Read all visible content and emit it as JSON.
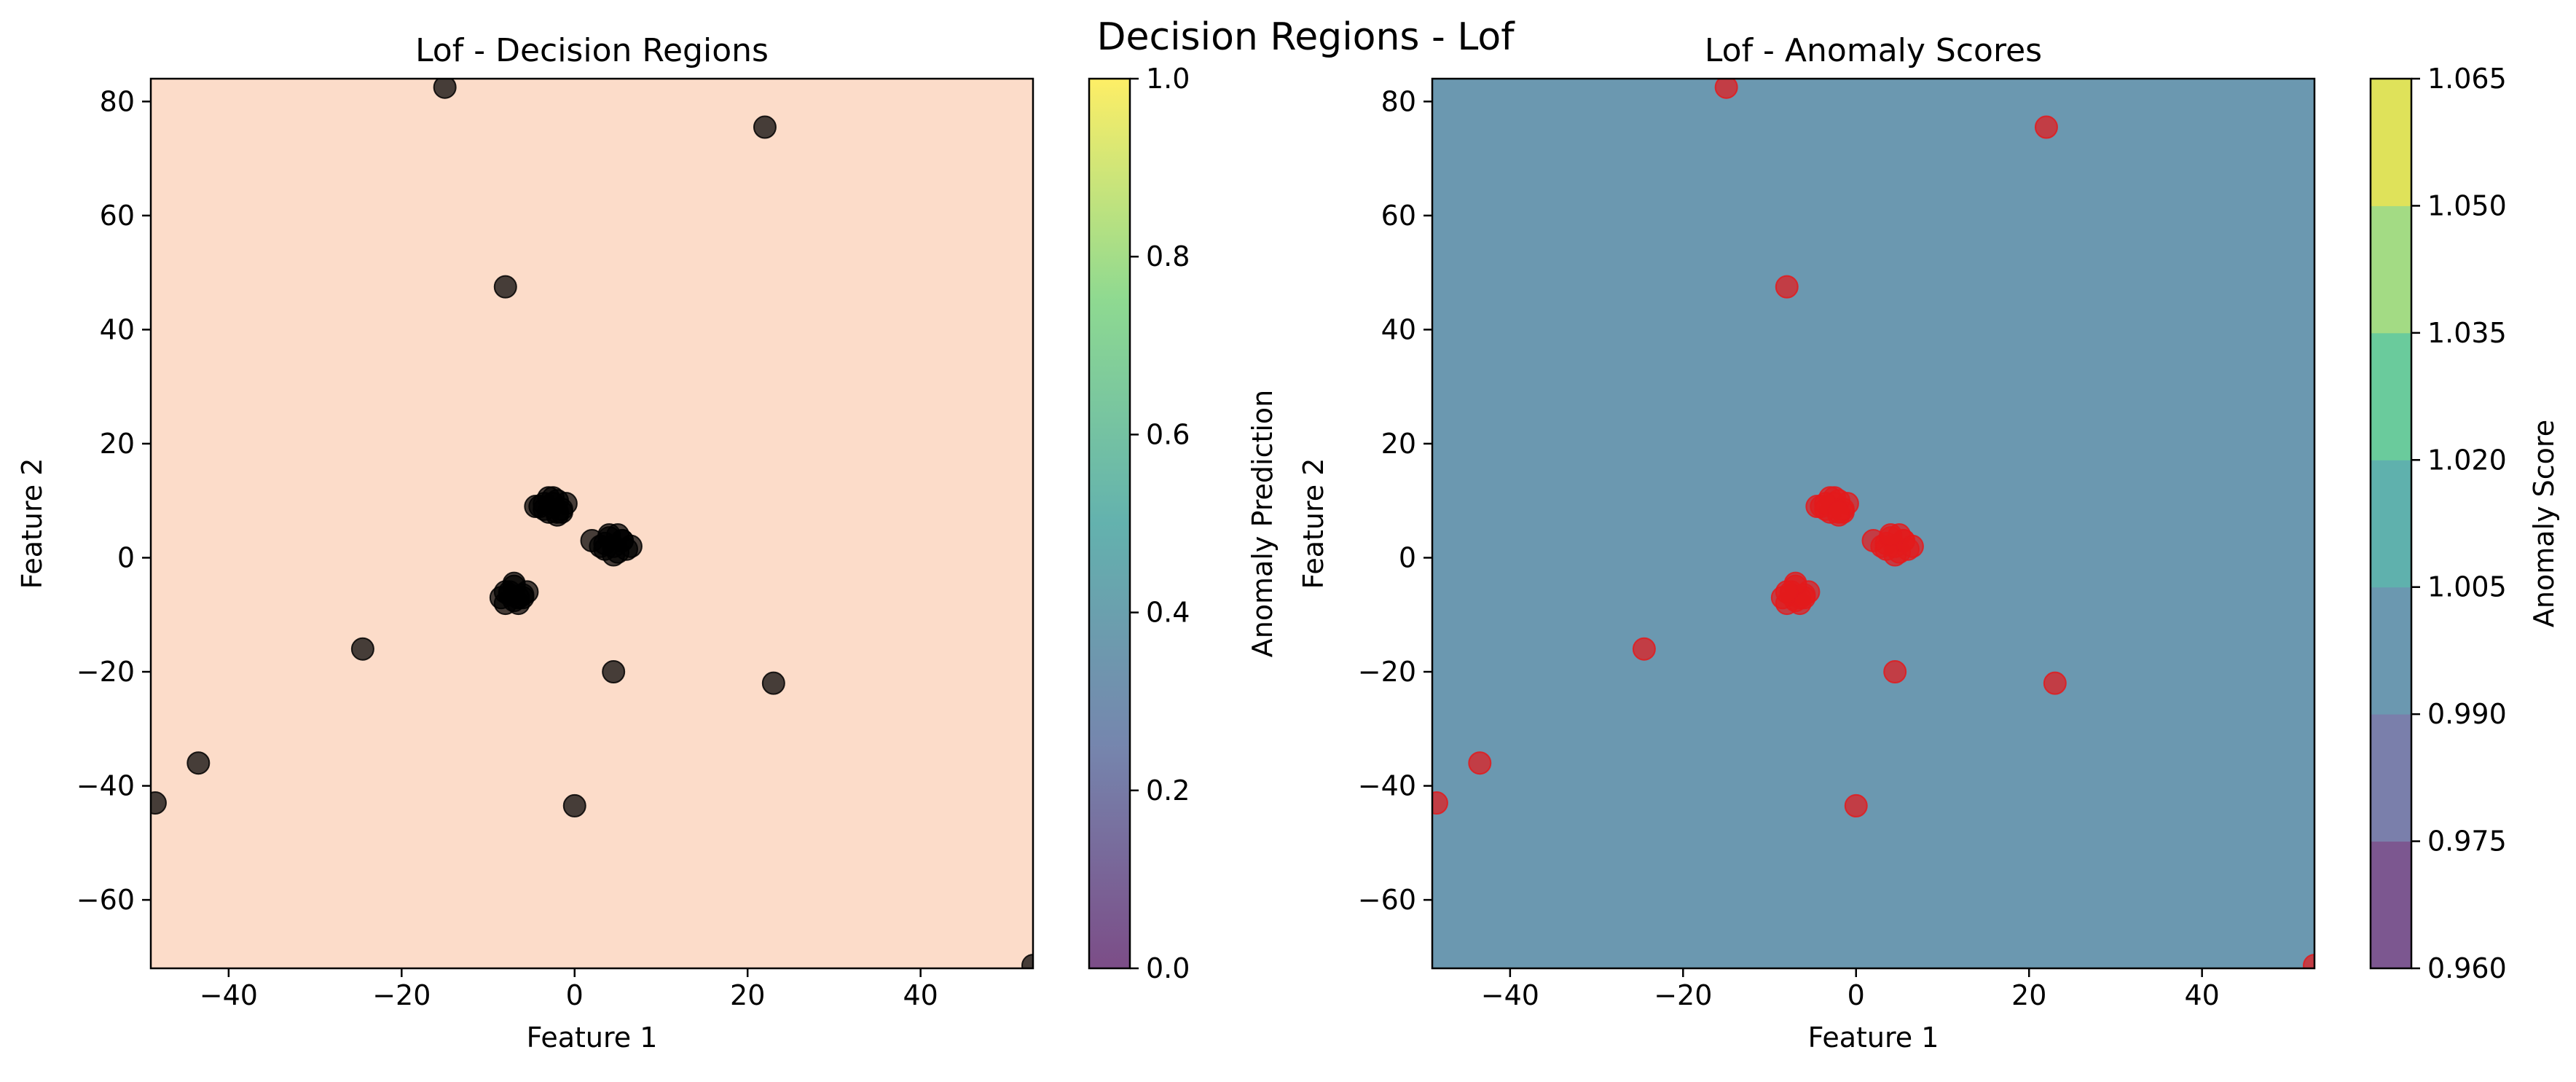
{
  "suptitle": "Decision Regions - Lof",
  "chart_data": [
    {
      "type": "scatter",
      "title": "Lof - Decision Regions",
      "xlabel": "Feature 1",
      "ylabel": "Feature 2",
      "xlim": [
        -49,
        53
      ],
      "ylim": [
        -72,
        84
      ],
      "xticks": [
        -40,
        -20,
        0,
        20,
        40
      ],
      "yticks": [
        -60,
        -40,
        -20,
        0,
        20,
        40,
        60,
        80
      ],
      "grid": false,
      "background_region_color": "#fcdcc9",
      "point_color": "#000000",
      "points": {
        "x": [
          -15,
          22,
          -8,
          -24.5,
          4.5,
          23,
          -43.5,
          -48.5,
          0,
          53,
          -3.5,
          -2.5,
          -2,
          -1.5,
          -3,
          -4,
          -2,
          -1,
          -3,
          -2.5,
          -4.5,
          -1.5,
          -3.5,
          -2,
          4.5,
          5.5,
          3.5,
          6,
          4,
          5,
          2,
          3,
          5,
          4.5,
          5.5,
          6.5,
          3.5,
          4,
          -7.5,
          -6.5,
          -8,
          -7,
          -6,
          -5.5,
          -7,
          -6.5,
          -8.5,
          -7.5,
          -6,
          -7,
          -8
        ],
        "y": [
          82.5,
          75.5,
          47.5,
          -16,
          -20,
          -22,
          -36,
          -43,
          -43.5,
          -71.5,
          8.5,
          9.5,
          10,
          8,
          10.5,
          9,
          7.5,
          9.5,
          8,
          10.5,
          9,
          8.5,
          9.5,
          8,
          2,
          3,
          2.5,
          1.5,
          3.5,
          1,
          3,
          2,
          4,
          0.5,
          3,
          2,
          1.5,
          4,
          -6.5,
          -7,
          -8,
          -5,
          -6.5,
          -6,
          -7.5,
          -8,
          -7,
          -6,
          -7,
          -4.5,
          -6
        ]
      },
      "colorbar": {
        "label": "Anomaly Prediction",
        "range": [
          0.0,
          1.0
        ],
        "ticks": [
          "0.0",
          "0.2",
          "0.4",
          "0.6",
          "0.8",
          "1.0"
        ],
        "colors": [
          "#440154",
          "#3b528b",
          "#21918c",
          "#5ec962",
          "#fde725"
        ]
      }
    },
    {
      "type": "scatter",
      "title": "Lof - Anomaly Scores",
      "xlabel": "Feature 1",
      "ylabel": "Feature 2",
      "xlim": [
        -49,
        53
      ],
      "ylim": [
        -72,
        84
      ],
      "xticks": [
        -40,
        -20,
        0,
        20,
        40
      ],
      "yticks": [
        -60,
        -40,
        -20,
        0,
        20,
        40,
        60,
        80
      ],
      "grid": false,
      "background_region_color": "#6b98b0",
      "point_color": "#e31a1c",
      "points": {
        "x": [
          -15,
          22,
          -8,
          -24.5,
          4.5,
          23,
          -43.5,
          -48.5,
          0,
          53,
          -3.5,
          -2.5,
          -2,
          -1.5,
          -3,
          -4,
          -2,
          -1,
          -3,
          -2.5,
          -4.5,
          -1.5,
          -3.5,
          -2,
          4.5,
          5.5,
          3.5,
          6,
          4,
          5,
          2,
          3,
          5,
          4.5,
          5.5,
          6.5,
          3.5,
          4,
          -7.5,
          -6.5,
          -8,
          -7,
          -6,
          -5.5,
          -7,
          -6.5,
          -8.5,
          -7.5,
          -6,
          -7,
          -8
        ],
        "y": [
          82.5,
          75.5,
          47.5,
          -16,
          -20,
          -22,
          -36,
          -43,
          -43.5,
          -71.5,
          8.5,
          9.5,
          10,
          8,
          10.5,
          9,
          7.5,
          9.5,
          8,
          10.5,
          9,
          8.5,
          9.5,
          8,
          2,
          3,
          2.5,
          1.5,
          3.5,
          1,
          3,
          2,
          4,
          0.5,
          3,
          2,
          1.5,
          4,
          -6.5,
          -7,
          -8,
          -5,
          -6.5,
          -6,
          -7.5,
          -8,
          -7,
          -6,
          -7,
          -4.5,
          -6
        ]
      },
      "colorbar": {
        "label": "Anomaly Score",
        "levels": [
          0.96,
          0.975,
          0.99,
          1.005,
          1.02,
          1.035,
          1.05,
          1.065
        ],
        "ticks": [
          "0.960",
          "0.975",
          "0.990",
          "1.005",
          "1.020",
          "1.035",
          "1.050",
          "1.065"
        ],
        "level_colors": [
          "#7c5790",
          "#7a7fab",
          "#6b98b0",
          "#5fb1ad",
          "#6acb9c",
          "#a3db84",
          "#dfe25a"
        ]
      }
    }
  ]
}
